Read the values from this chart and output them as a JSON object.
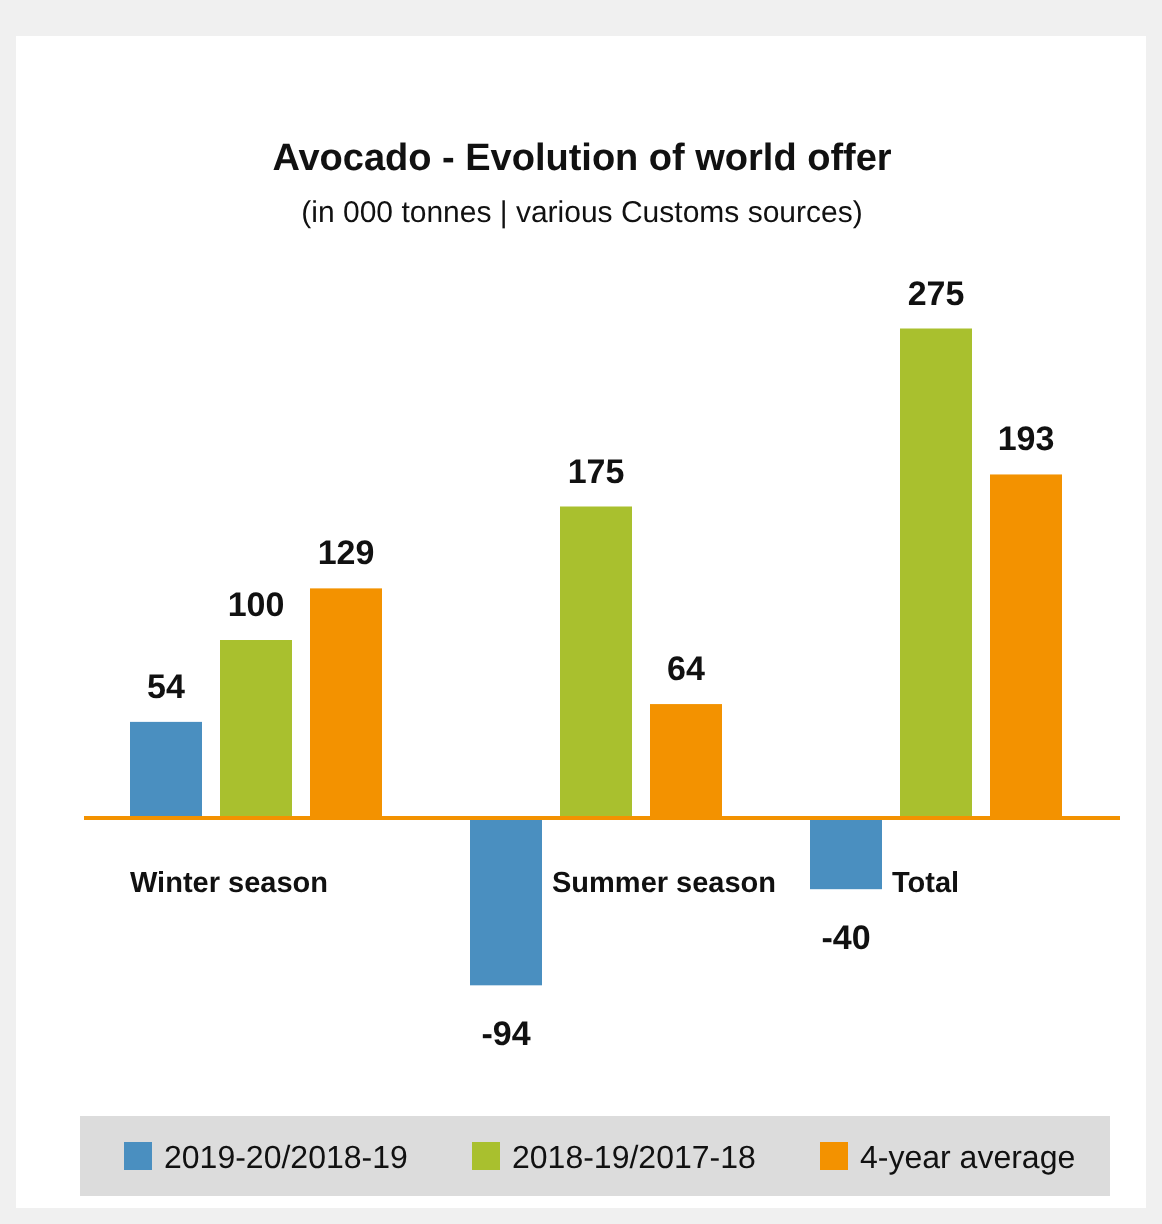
{
  "chart_data": {
    "type": "bar",
    "title": "Avocado - Evolution of world offer",
    "subtitle": "(in 000 tonnes | various Customs sources)",
    "categories": [
      "Winter season",
      "Summer season",
      "Total"
    ],
    "series": [
      {
        "name": "2019-20/2018-19",
        "color": "#4a8fc0",
        "values": [
          54,
          -94,
          -40
        ]
      },
      {
        "name": "2018-19/2017-18",
        "color": "#a9c02e",
        "values": [
          100,
          175,
          275
        ]
      },
      {
        "name": "4-year average",
        "color": "#f39200",
        "values": [
          129,
          64,
          193
        ]
      }
    ],
    "data_labels": true,
    "legend": "bottom"
  }
}
